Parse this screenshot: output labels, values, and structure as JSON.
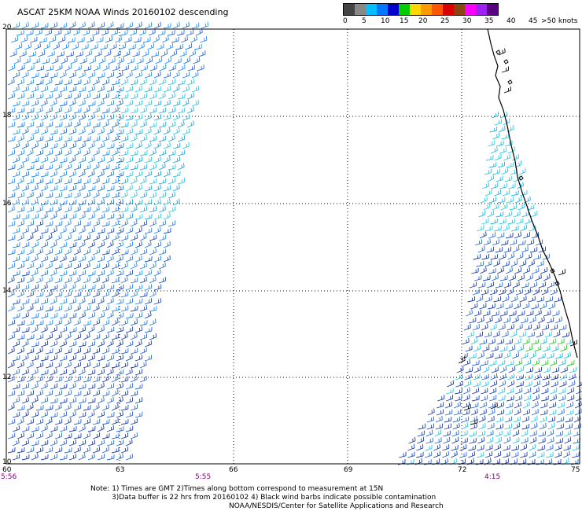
{
  "title": "ASCAT 25KM NOAA Winds 20160102 descending",
  "colorbar": {
    "colors": [
      "#444444",
      "#888888",
      "#00bfff",
      "#0077ff",
      "#0000cc",
      "#00cc00",
      "#ffd700",
      "#ff9900",
      "#ff5500",
      "#dd0000",
      "#8b4513",
      "#ff00ff",
      "#a020f0",
      "#5a0080"
    ],
    "labels": [
      "0",
      "5",
      "10",
      "15",
      "20",
      "25",
      "30",
      "35",
      "40",
      "45",
      ">50 knots"
    ],
    "label_colors": [
      "#666666",
      "#222222"
    ]
  },
  "axes": {
    "lat_labels": [
      "20",
      "18",
      "16",
      "14",
      "12",
      "10"
    ],
    "lon_labels": [
      "60",
      "63",
      "66",
      "69",
      "72",
      "75"
    ],
    "time_labels": [
      "5:56",
      "5:55",
      "4:15"
    ]
  },
  "notes": [
    "Note: 1) Times are GMT 2)Times along bottom correspond to measurement at 15N",
    "3)Data buffer is 22 hrs from 20160102 4) Black wind barbs indicate possible contamination",
    "NOAA/NESDIS/Center for Satellite Applications and Research"
  ]
}
